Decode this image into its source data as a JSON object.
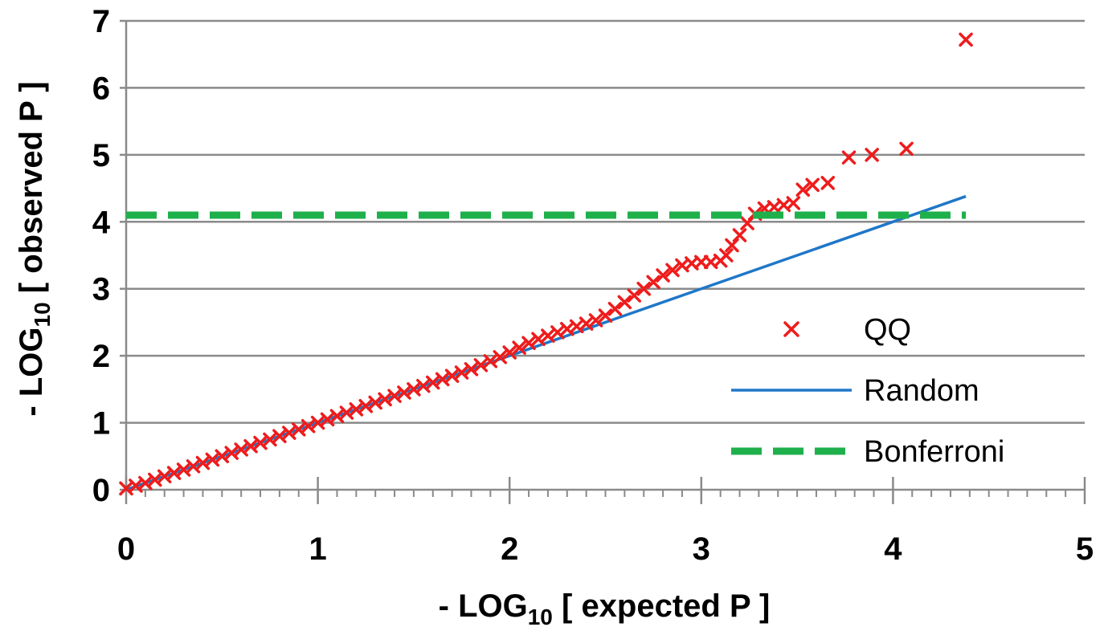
{
  "chart_data": {
    "type": "scatter",
    "xlabel": {
      "prefix": "- LOG",
      "sub": "10",
      "suffix": " [ expected  P ]"
    },
    "ylabel": {
      "prefix": "- LOG",
      "sub": "10",
      "suffix": " [ observed  P ]"
    },
    "xlim": [
      0,
      5
    ],
    "ylim": [
      0,
      7
    ],
    "x_ticks": [
      0,
      1,
      2,
      3,
      4,
      5
    ],
    "y_ticks": [
      0,
      1,
      2,
      3,
      4,
      5,
      6,
      7
    ],
    "grid": "horizontal",
    "legend_position": "right",
    "series": [
      {
        "name": "QQ",
        "kind": "marker-x",
        "color": "#ee1c1c",
        "points": [
          [
            0.0,
            0.02
          ],
          [
            0.05,
            0.06
          ],
          [
            0.1,
            0.1
          ],
          [
            0.15,
            0.15
          ],
          [
            0.2,
            0.2
          ],
          [
            0.25,
            0.25
          ],
          [
            0.3,
            0.3
          ],
          [
            0.35,
            0.35
          ],
          [
            0.4,
            0.4
          ],
          [
            0.45,
            0.45
          ],
          [
            0.5,
            0.5
          ],
          [
            0.55,
            0.55
          ],
          [
            0.6,
            0.6
          ],
          [
            0.65,
            0.65
          ],
          [
            0.7,
            0.7
          ],
          [
            0.75,
            0.75
          ],
          [
            0.8,
            0.8
          ],
          [
            0.85,
            0.85
          ],
          [
            0.9,
            0.9
          ],
          [
            0.95,
            0.95
          ],
          [
            1.0,
            1.0
          ],
          [
            1.05,
            1.05
          ],
          [
            1.1,
            1.1
          ],
          [
            1.15,
            1.15
          ],
          [
            1.2,
            1.2
          ],
          [
            1.25,
            1.25
          ],
          [
            1.3,
            1.3
          ],
          [
            1.35,
            1.35
          ],
          [
            1.4,
            1.4
          ],
          [
            1.45,
            1.45
          ],
          [
            1.5,
            1.5
          ],
          [
            1.55,
            1.55
          ],
          [
            1.6,
            1.6
          ],
          [
            1.65,
            1.65
          ],
          [
            1.7,
            1.7
          ],
          [
            1.75,
            1.75
          ],
          [
            1.8,
            1.8
          ],
          [
            1.85,
            1.86
          ],
          [
            1.9,
            1.92
          ],
          [
            1.95,
            1.98
          ],
          [
            2.0,
            2.05
          ],
          [
            2.05,
            2.12
          ],
          [
            2.1,
            2.19
          ],
          [
            2.15,
            2.25
          ],
          [
            2.2,
            2.3
          ],
          [
            2.25,
            2.35
          ],
          [
            2.3,
            2.4
          ],
          [
            2.35,
            2.44
          ],
          [
            2.4,
            2.48
          ],
          [
            2.45,
            2.53
          ],
          [
            2.5,
            2.6
          ],
          [
            2.55,
            2.7
          ],
          [
            2.6,
            2.8
          ],
          [
            2.65,
            2.9
          ],
          [
            2.7,
            3.0
          ],
          [
            2.75,
            3.1
          ],
          [
            2.8,
            3.2
          ],
          [
            2.85,
            3.28
          ],
          [
            2.9,
            3.35
          ],
          [
            2.95,
            3.38
          ],
          [
            3.0,
            3.4
          ],
          [
            3.05,
            3.4
          ],
          [
            3.1,
            3.42
          ],
          [
            3.13,
            3.5
          ],
          [
            3.16,
            3.65
          ],
          [
            3.2,
            3.8
          ],
          [
            3.24,
            3.98
          ],
          [
            3.28,
            4.12
          ],
          [
            3.33,
            4.2
          ],
          [
            3.38,
            4.22
          ],
          [
            3.43,
            4.25
          ],
          [
            3.48,
            4.28
          ],
          [
            3.53,
            4.48
          ],
          [
            3.58,
            4.55
          ],
          [
            3.66,
            4.58
          ],
          [
            3.77,
            4.96
          ],
          [
            3.89,
            5.0
          ],
          [
            4.07,
            5.09
          ],
          [
            4.38,
            6.72
          ]
        ]
      },
      {
        "name": "Random",
        "kind": "line",
        "color": "#1f77c8",
        "points": [
          [
            0,
            0
          ],
          [
            4.38,
            4.38
          ]
        ]
      },
      {
        "name": "Bonferroni",
        "kind": "dashed-line",
        "color": "#1fb04b",
        "points": [
          [
            0,
            4.1
          ],
          [
            4.38,
            4.1
          ]
        ]
      }
    ]
  }
}
